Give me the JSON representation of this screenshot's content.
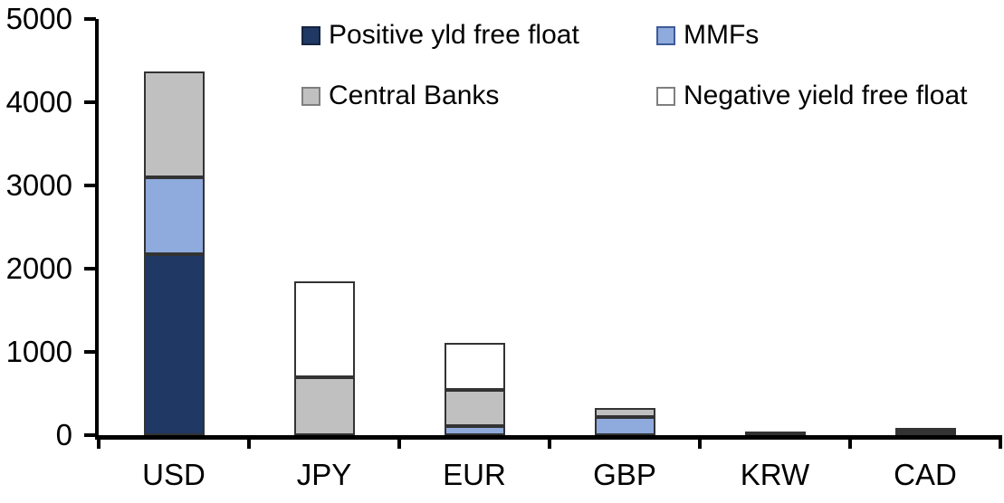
{
  "chart_data": {
    "type": "bar",
    "stacked": true,
    "title": "",
    "categories": [
      "USD",
      "JPY",
      "EUR",
      "GBP",
      "KRW",
      "CAD"
    ],
    "series": [
      {
        "name": "Positive yld free float",
        "color": "#1f3864",
        "marker_border": "#16243f",
        "values": [
          2170,
          0,
          0,
          0,
          45,
          30
        ]
      },
      {
        "name": "MMFs",
        "color": "#8faadc",
        "marker_border": "#3d5b97",
        "values": [
          930,
          0,
          110,
          220,
          0,
          0
        ]
      },
      {
        "name": "Central Banks",
        "color": "#c0c0c0",
        "marker_border": "#7f7f7f",
        "values": [
          1270,
          700,
          435,
          105,
          0,
          35
        ]
      },
      {
        "name": "Negative yield free float",
        "color": "#ffffff",
        "marker_border": "#7f7f7f",
        "values": [
          0,
          1145,
          565,
          0,
          0,
          0
        ]
      }
    ],
    "ylim": [
      0,
      5000
    ],
    "yticks": [
      0,
      1000,
      2000,
      3000,
      4000,
      5000
    ],
    "grid": false,
    "legend_position": "top, two rows, two columns",
    "bar_border_color": "#333333",
    "axis_color": "#000000",
    "text_color": "#000000",
    "background_color": "#ffffff"
  }
}
